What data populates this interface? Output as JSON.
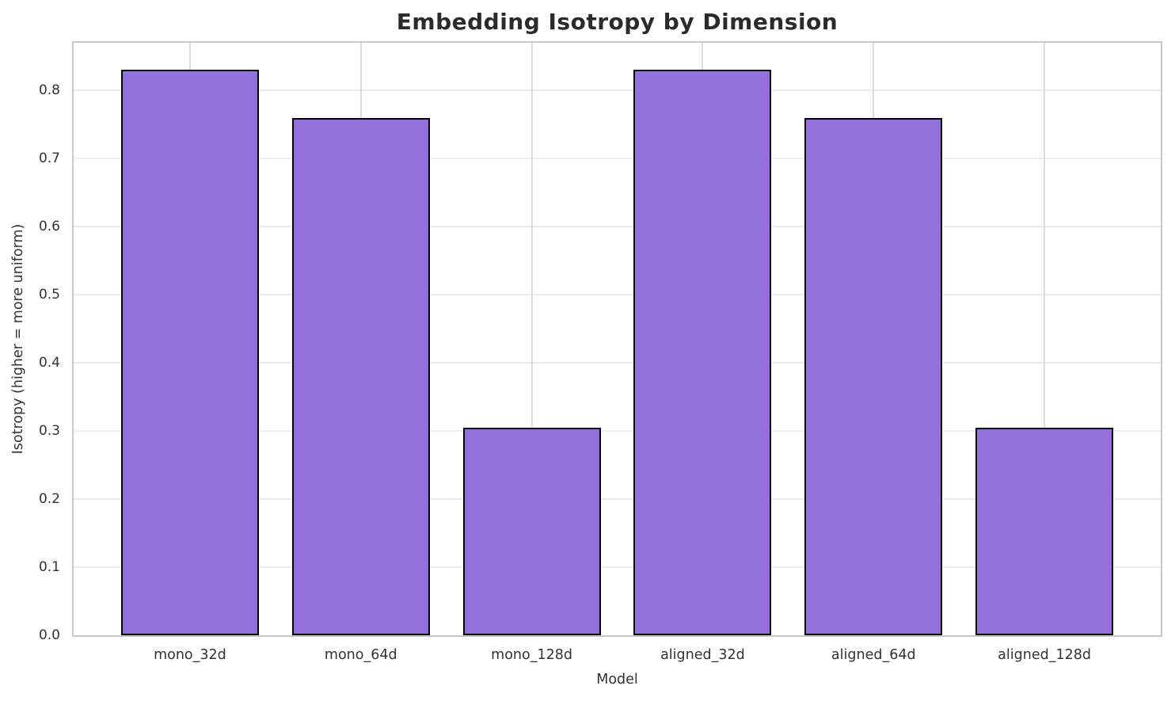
{
  "chart_data": {
    "type": "bar",
    "title": "Embedding Isotropy by Dimension",
    "xlabel": "Model",
    "ylabel": "Isotropy (higher = more uniform)",
    "categories": [
      "mono_32d",
      "mono_64d",
      "mono_128d",
      "aligned_32d",
      "aligned_64d",
      "aligned_128d"
    ],
    "values": [
      0.83,
      0.76,
      0.305,
      0.83,
      0.76,
      0.305
    ],
    "ylim": [
      0,
      0.87
    ],
    "yticks": [
      0.0,
      0.1,
      0.2,
      0.3,
      0.4,
      0.5,
      0.6,
      0.7,
      0.8
    ],
    "grid": true,
    "legend_position": "none",
    "colors": {
      "bar_fill": "#9370DB",
      "bar_edge": "#000000",
      "grid_horizontal": "#ececec",
      "grid_vertical": "#dcdcdc",
      "spine": "#c9c9c9",
      "title_text": "#2b2b2b",
      "tick_text": "#333333"
    }
  }
}
